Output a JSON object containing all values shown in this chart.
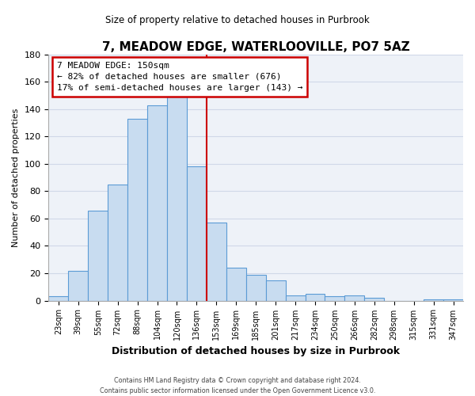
{
  "title": "7, MEADOW EDGE, WATERLOOVILLE, PO7 5AZ",
  "subtitle": "Size of property relative to detached houses in Purbrook",
  "xlabel": "Distribution of detached houses by size in Purbrook",
  "ylabel": "Number of detached properties",
  "bar_labels": [
    "23sqm",
    "39sqm",
    "55sqm",
    "72sqm",
    "88sqm",
    "104sqm",
    "120sqm",
    "136sqm",
    "153sqm",
    "169sqm",
    "185sqm",
    "201sqm",
    "217sqm",
    "234sqm",
    "250sqm",
    "266sqm",
    "282sqm",
    "298sqm",
    "315sqm",
    "331sqm",
    "347sqm"
  ],
  "bar_heights": [
    3,
    22,
    66,
    85,
    133,
    143,
    150,
    98,
    57,
    24,
    19,
    15,
    4,
    5,
    3,
    4,
    2,
    0,
    0,
    1,
    1
  ],
  "bar_color": "#c8dcf0",
  "bar_edge_color": "#5b9bd5",
  "vline_x_index": 7,
  "vline_color": "#cc0000",
  "annotation_title": "7 MEADOW EDGE: 150sqm",
  "annotation_line1": "← 82% of detached houses are smaller (676)",
  "annotation_line2": "17% of semi-detached houses are larger (143) →",
  "annotation_box_color": "#ffffff",
  "annotation_box_edge_color": "#cc0000",
  "ylim": [
    0,
    180
  ],
  "yticks": [
    0,
    20,
    40,
    60,
    80,
    100,
    120,
    140,
    160,
    180
  ],
  "grid_color": "#d0d8e8",
  "bg_color": "#eef2f8",
  "footer1": "Contains HM Land Registry data © Crown copyright and database right 2024.",
  "footer2": "Contains public sector information licensed under the Open Government Licence v3.0."
}
